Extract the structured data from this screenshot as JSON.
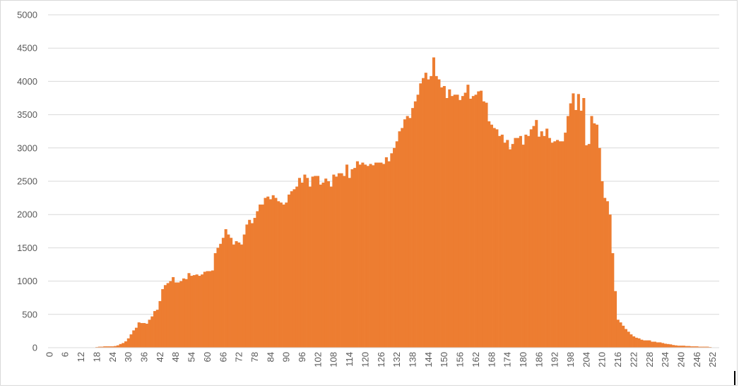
{
  "chart_data": {
    "type": "bar",
    "title": "",
    "xlabel": "",
    "ylabel": "",
    "ylim": [
      0,
      5000
    ],
    "y_ticks": [
      "0",
      "500",
      "1000",
      "1500",
      "2000",
      "2500",
      "3000",
      "3500",
      "4000",
      "4500",
      "5000"
    ],
    "x_tick_labels": [
      "0",
      "6",
      "12",
      "18",
      "24",
      "30",
      "36",
      "42",
      "48",
      "54",
      "60",
      "66",
      "72",
      "78",
      "84",
      "90",
      "96",
      "102",
      "108",
      "114",
      "120",
      "126",
      "132",
      "138",
      "144",
      "150",
      "156",
      "162",
      "168",
      "174",
      "180",
      "186",
      "192",
      "198",
      "204",
      "210",
      "216",
      "222",
      "228",
      "234",
      "240",
      "246",
      "252"
    ],
    "x_tick_step": 6,
    "grid": true,
    "legend": "none",
    "bar_color": "#ED7D31",
    "categories_range": [
      0,
      255
    ],
    "values": [
      0,
      0,
      0,
      0,
      0,
      0,
      0,
      0,
      0,
      0,
      0,
      0,
      0,
      0,
      0,
      0,
      0,
      5,
      10,
      15,
      15,
      20,
      20,
      20,
      20,
      25,
      35,
      55,
      70,
      95,
      140,
      200,
      260,
      300,
      380,
      370,
      370,
      360,
      420,
      470,
      550,
      570,
      700,
      880,
      940,
      970,
      1000,
      1060,
      980,
      980,
      1000,
      1040,
      1030,
      1120,
      1080,
      1090,
      1100,
      1080,
      1100,
      1140,
      1150,
      1150,
      1160,
      1420,
      1500,
      1560,
      1650,
      1780,
      1700,
      1650,
      1550,
      1600,
      1580,
      1550,
      1700,
      1850,
      1920,
      1870,
      1950,
      2050,
      2150,
      2150,
      2250,
      2270,
      2230,
      2290,
      2250,
      2200,
      2180,
      2150,
      2180,
      2300,
      2350,
      2380,
      2420,
      2550,
      2480,
      2600,
      2550,
      2420,
      2570,
      2580,
      2580,
      2450,
      2480,
      2540,
      2500,
      2420,
      2600,
      2570,
      2620,
      2620,
      2580,
      2750,
      2550,
      2680,
      2700,
      2800,
      2750,
      2780,
      2750,
      2730,
      2760,
      2740,
      2780,
      2780,
      2780,
      2760,
      2860,
      2800,
      2920,
      3000,
      3100,
      3250,
      3300,
      3430,
      3480,
      3450,
      3600,
      3700,
      3800,
      3970,
      4050,
      4130,
      4030,
      4080,
      4360,
      4080,
      4030,
      3910,
      3930,
      3750,
      3880,
      3780,
      3800,
      3800,
      3720,
      3780,
      3830,
      3950,
      3740,
      3780,
      3800,
      3850,
      3860,
      3700,
      3680,
      3400,
      3350,
      3300,
      3280,
      3180,
      3200,
      3080,
      3120,
      2980,
      3060,
      3150,
      3150,
      3180,
      3050,
      3200,
      3180,
      3280,
      3330,
      3420,
      3170,
      3250,
      3180,
      3290,
      3150,
      3080,
      3100,
      3120,
      3100,
      3100,
      3230,
      3480,
      3670,
      3820,
      3570,
      3810,
      3560,
      3750,
      3040,
      3060,
      3480,
      3370,
      3350,
      3000,
      2500,
      2250,
      2200,
      2000,
      1420,
      850,
      420,
      380,
      330,
      280,
      240,
      200,
      170,
      150,
      140,
      120,
      110,
      110,
      110,
      90,
      90,
      80,
      80,
      70,
      60,
      55,
      50,
      40,
      35,
      30,
      30,
      30,
      25,
      25,
      20,
      20,
      20,
      15,
      15,
      15,
      15,
      10,
      5,
      0,
      0
    ]
  }
}
